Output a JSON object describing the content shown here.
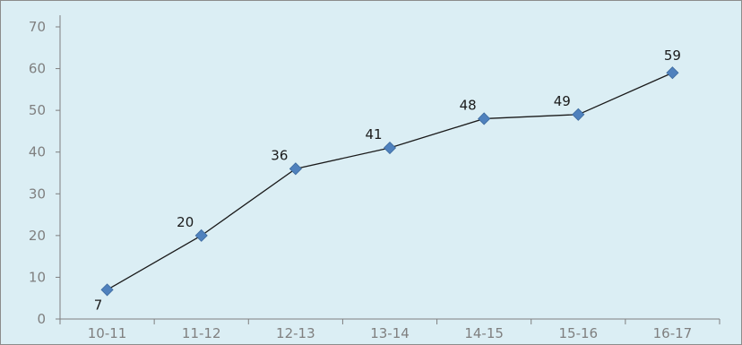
{
  "chart_data": {
    "type": "line",
    "title": "",
    "xlabel": "",
    "ylabel": "",
    "categories": [
      "10-11",
      "11-12",
      "12-13",
      "13-14",
      "14-15",
      "15-16",
      "16-17"
    ],
    "series": [
      {
        "values": [
          7,
          20,
          36,
          41,
          48,
          49,
          59
        ]
      }
    ],
    "ylim": [
      0,
      70
    ],
    "yticks": [
      0,
      10,
      20,
      30,
      40,
      50,
      60,
      70
    ],
    "grid": false,
    "legend": "none",
    "data_labels": true,
    "colors": {
      "background": "#dbeef4",
      "line": "#1a1a1a",
      "marker": "#4f81bd",
      "axis": "#7f7f7f",
      "tick_text": "#7f7f7f",
      "label_text": "#1a1a1a"
    },
    "marker": "diamond"
  }
}
